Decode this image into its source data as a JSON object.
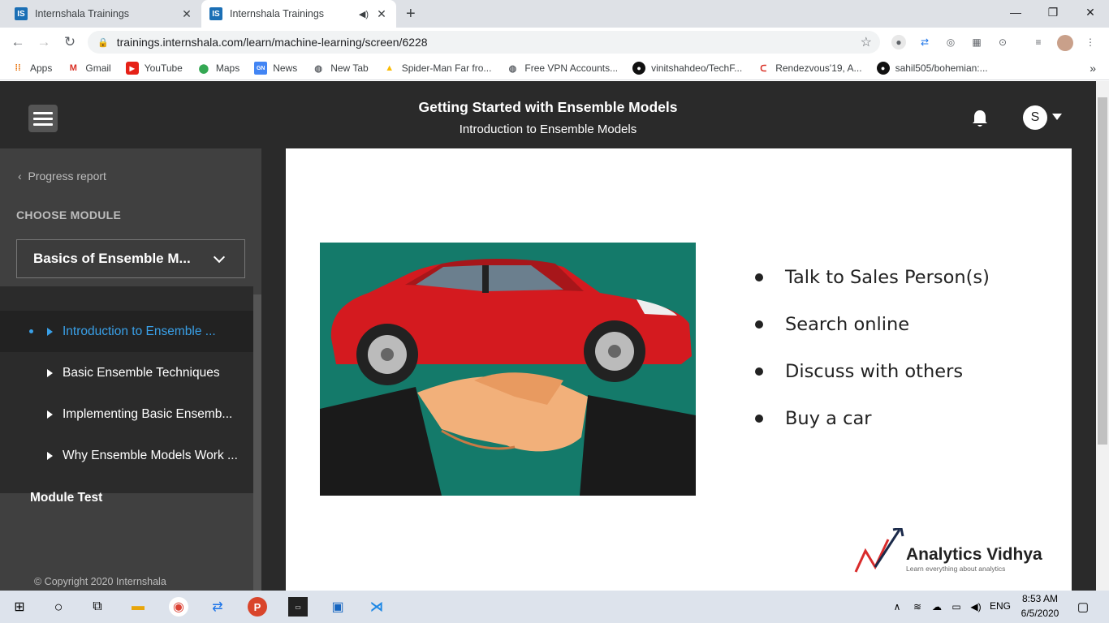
{
  "browser": {
    "tabs": [
      {
        "title": "Internshala Trainings",
        "favicon": "IS"
      },
      {
        "title": "Internshala Trainings",
        "favicon": "IS"
      }
    ],
    "url": "trainings.internshala.com/learn/machine-learning/screen/6228",
    "bookmarks": [
      {
        "label": "Apps",
        "icon": "apps-grid-icon"
      },
      {
        "label": "Gmail",
        "icon": "gmail-icon"
      },
      {
        "label": "YouTube",
        "icon": "youtube-icon"
      },
      {
        "label": "Maps",
        "icon": "maps-icon"
      },
      {
        "label": "News",
        "icon": "news-icon"
      },
      {
        "label": "New Tab",
        "icon": "globe-icon"
      },
      {
        "label": "Spider-Man Far fro...",
        "icon": "drive-icon"
      },
      {
        "label": "Free VPN Accounts...",
        "icon": "globe-icon"
      },
      {
        "label": "vinitshahdeo/TechF...",
        "icon": "github-icon"
      },
      {
        "label": "Rendezvous'19, A...",
        "icon": "rendezvous-icon"
      },
      {
        "label": "sahil505/bohemian:...",
        "icon": "github-icon"
      }
    ]
  },
  "header": {
    "title": "Getting Started with Ensemble Models",
    "subtitle": "Introduction to Ensemble Models",
    "avatar_letter": "S"
  },
  "sidebar": {
    "back_label": "Progress report",
    "choose_label": "CHOOSE MODULE",
    "selected_module": "Basics of Ensemble M...",
    "items": [
      {
        "label": "Introduction to Ensemble ...",
        "active": true
      },
      {
        "label": "Basic Ensemble Techniques",
        "active": false
      },
      {
        "label": "Implementing Basic Ensemb...",
        "active": false
      },
      {
        "label": "Why Ensemble Models Work ...",
        "active": false
      }
    ],
    "module_test": "Module Test",
    "copyright": "© Copyright 2020 Internshala"
  },
  "slide": {
    "bullets": [
      "Talk to Sales Person(s)",
      "Search online",
      "Discuss with others",
      "Buy a car"
    ],
    "logo_name": "Analytics Vidhya",
    "logo_tagline": "Learn everything about analytics"
  },
  "taskbar": {
    "time": "8:53 AM",
    "date": "6/5/2020",
    "lang": "ENG"
  }
}
